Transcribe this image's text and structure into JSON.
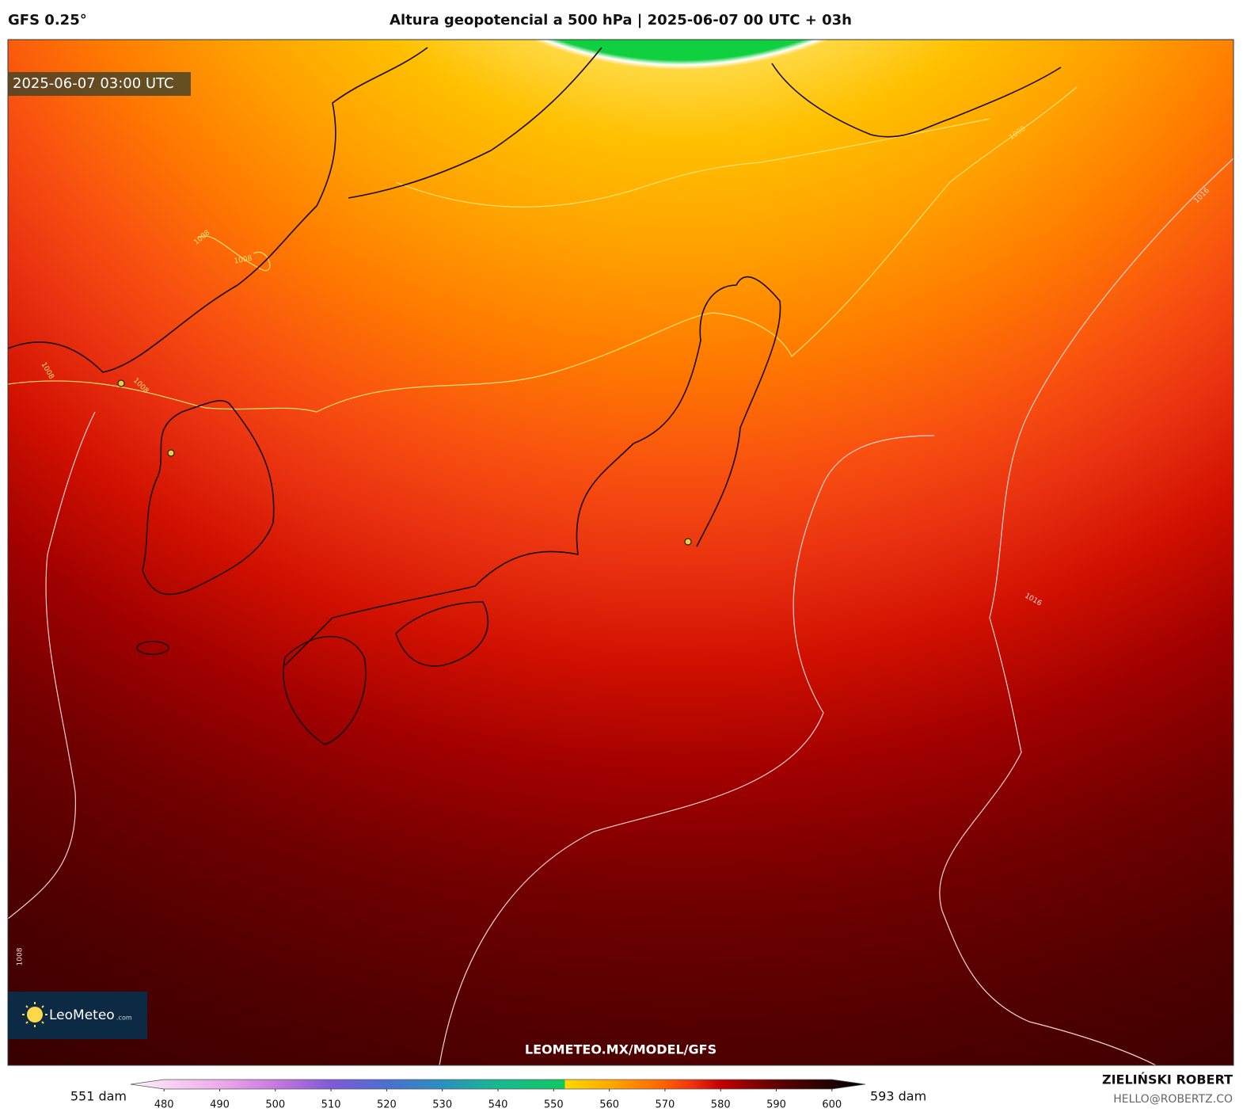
{
  "header": {
    "model": "GFS 0.25°",
    "title": "Altura geopotencial a 500 hPa | 2025-06-07 00 UTC + 03h"
  },
  "map": {
    "timestamp": "2025-06-07 03:00 UTC",
    "contour_labels": [
      "1008",
      "1008",
      "1008",
      "1008",
      "1008",
      "1016",
      "1016",
      "1008"
    ],
    "watermark": "LEOMETEO.MX/MODEL/GFS",
    "logo": {
      "name": "LeoMeteo",
      "suffix": ".com"
    }
  },
  "colorbar": {
    "min_label": "551 dam",
    "max_label": "593 dam",
    "range": [
      474,
      606
    ],
    "ticks": [
      480,
      490,
      500,
      510,
      520,
      530,
      540,
      550,
      560,
      570,
      580,
      590,
      600
    ],
    "stops": [
      {
        "value": 474,
        "color": "#fff0fc"
      },
      {
        "value": 490,
        "color": "#eeaaea"
      },
      {
        "value": 500,
        "color": "#c878e0"
      },
      {
        "value": 510,
        "color": "#7e5ad8"
      },
      {
        "value": 520,
        "color": "#4a70d0"
      },
      {
        "value": 530,
        "color": "#2a90c0"
      },
      {
        "value": 540,
        "color": "#18b890"
      },
      {
        "value": 552,
        "color": "#10c860"
      },
      {
        "value": 552,
        "color": "#ffd800"
      },
      {
        "value": 560,
        "color": "#ffaa00"
      },
      {
        "value": 570,
        "color": "#ff6000"
      },
      {
        "value": 575,
        "color": "#f03010"
      },
      {
        "value": 580,
        "color": "#c00000"
      },
      {
        "value": 590,
        "color": "#600000"
      },
      {
        "value": 600,
        "color": "#200000"
      },
      {
        "value": 606,
        "color": "#000000"
      }
    ]
  },
  "footer": {
    "author": "ZIELIŃSKI ROBERT",
    "email": "HELLO@ROBERTZ.CO"
  }
}
